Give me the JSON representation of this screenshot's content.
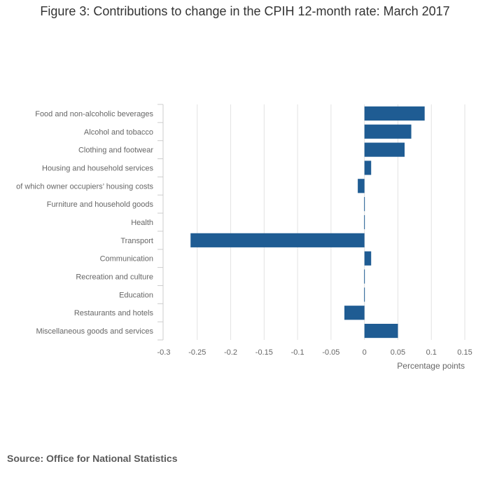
{
  "title": "Figure 3: Contributions to change in the CPIH 12-month rate: March 2017",
  "source": "Source: Office for National Statistics",
  "chart_data": {
    "type": "bar",
    "orientation": "horizontal",
    "categories": [
      "Food and non-alcoholic beverages",
      "Alcohol and tobacco",
      "Clothing and footwear",
      "Housing and household services",
      "of which owner occupiers’ housing costs",
      "Furniture and household goods",
      "Health",
      "Transport",
      "Communication",
      "Recreation and culture",
      "Education",
      "Restaurants and hotels",
      "Miscellaneous goods and services"
    ],
    "values": [
      0.09,
      0.07,
      0.06,
      0.01,
      -0.01,
      0.0,
      0.0,
      -0.26,
      0.01,
      0.0,
      0.0,
      -0.03,
      0.05
    ],
    "xlabel": "Percentage points",
    "ylabel": "",
    "xlim": [
      -0.3,
      0.15
    ],
    "xticks": [
      -0.3,
      -0.25,
      -0.2,
      -0.15,
      -0.1,
      -0.05,
      0,
      0.05,
      0.1,
      0.15
    ],
    "xtick_labels": [
      "-0.3",
      "-0.25",
      "-0.2",
      "-0.15",
      "-0.1",
      "-0.05",
      "0",
      "0.05",
      "0.1",
      "0.15"
    ],
    "grid": true,
    "legend": "none",
    "bar_color": "#1f5c93"
  }
}
